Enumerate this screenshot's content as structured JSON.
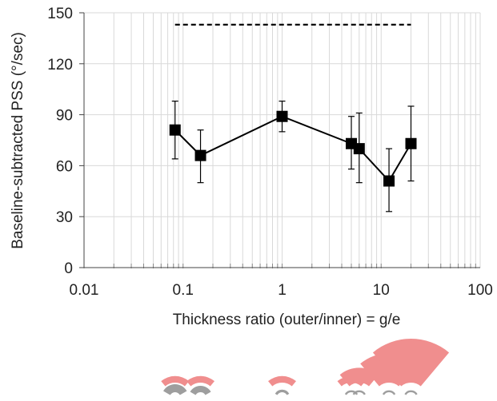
{
  "chart_data": {
    "type": "scatter",
    "title": "",
    "xlabel": "Thickness ratio (outer/inner) = g/e",
    "ylabel": "Baseline-subtracted PSS (°/sec)",
    "x_scale": "log",
    "xlim": [
      0.01,
      100
    ],
    "ylim": [
      0,
      150
    ],
    "x_tick_labels": [
      "0.01",
      "0.1",
      "1",
      "10",
      "100"
    ],
    "x_ticks": [
      0.01,
      0.1,
      1,
      10,
      100
    ],
    "y_tick_labels": [
      "0",
      "30",
      "60",
      "90",
      "120",
      "150"
    ],
    "y_ticks": [
      0,
      30,
      60,
      90,
      120,
      150
    ],
    "grid": true,
    "legend": "none",
    "series": [
      {
        "x": [
          0.083,
          0.15,
          1.0,
          5.0,
          6.0,
          12.0,
          20.0
        ],
        "y": [
          81,
          66,
          89,
          73,
          70,
          51,
          73
        ],
        "err_low": [
          64,
          50,
          80,
          58,
          50,
          33,
          51
        ],
        "err_high": [
          98,
          81,
          98,
          89,
          91,
          70,
          95
        ],
        "color": "#000000",
        "marker": "square",
        "line": "solid"
      }
    ],
    "reference_line": {
      "y": 143,
      "x_start": 0.083,
      "x_end": 20.0,
      "style": "dashed",
      "color": "#000000"
    }
  },
  "schematic": {
    "arc_color": "#f08e8e",
    "ring_color": "#9e9e9e",
    "items": [
      {
        "x": 0.083,
        "outer": 0.1,
        "inner": 1.0
      },
      {
        "x": 0.15,
        "outer": 0.1,
        "inner": 0.75
      },
      {
        "x": 1.0,
        "outer": 0.1,
        "inner": 0.15
      },
      {
        "x": 5.0,
        "outer": 0.1,
        "inner": 0.05
      },
      {
        "x": 6.0,
        "outer": 0.3,
        "inner": 0.05
      },
      {
        "x": 12.0,
        "outer": 0.65,
        "inner": 0.05
      },
      {
        "x": 20.0,
        "outer": 1.0,
        "inner": 0.05
      }
    ]
  }
}
